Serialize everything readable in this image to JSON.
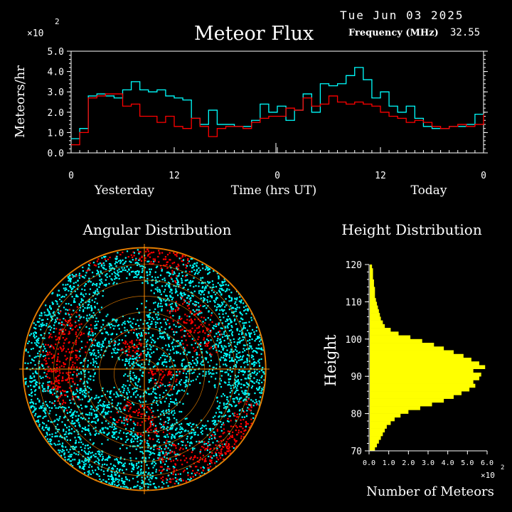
{
  "header": {
    "date": "Tue Jun 03 2025",
    "title": "Meteor Flux",
    "frequency_label": "Frequency (MHz)",
    "frequency_value": "32.55",
    "y_multiplier_base": "×10",
    "y_multiplier_exp": "2"
  },
  "colors": {
    "today": "#00ffff",
    "yesterday": "#ff0000",
    "histogram": "#ffff00",
    "axes": "#ffffff",
    "grid": "#ff8c00"
  },
  "chart_data": [
    {
      "type": "line",
      "title": "Meteor Flux",
      "ylabel": "Meteors/hr",
      "xlabel": "Time (hrs UT)",
      "day_labels": [
        "Yesterday",
        "Today"
      ],
      "y_scale_note": "×10^2",
      "ylim": [
        0.0,
        5.0
      ],
      "yticks": [
        "0.0",
        "1.0",
        "2.0",
        "3.0",
        "4.0",
        "5.0"
      ],
      "xlim": [
        0,
        48
      ],
      "xticks": [
        {
          "x": 0,
          "label": "0"
        },
        {
          "x": 12,
          "label": "12"
        },
        {
          "x": 24,
          "label": "0"
        },
        {
          "x": 36,
          "label": "12"
        },
        {
          "x": 48,
          "label": "0"
        }
      ],
      "step": "post",
      "series": [
        {
          "color": "cyan",
          "x": [
            0,
            1,
            2,
            3,
            4,
            5,
            6,
            7,
            8,
            9,
            10,
            11,
            12,
            13,
            14,
            15,
            16,
            17,
            18,
            19,
            20,
            21,
            22,
            23,
            24,
            25,
            26,
            27,
            28,
            29,
            30,
            31,
            32,
            33,
            34,
            35,
            36,
            37,
            38,
            39,
            40,
            41,
            42,
            43,
            44,
            45,
            46,
            47,
            48
          ],
          "y": [
            0.7,
            1.2,
            2.8,
            2.9,
            2.8,
            2.7,
            3.1,
            3.5,
            3.1,
            3.0,
            3.1,
            2.8,
            2.7,
            2.6,
            1.7,
            1.4,
            2.1,
            1.4,
            1.4,
            1.3,
            1.3,
            1.6,
            2.4,
            2.0,
            2.3,
            1.6,
            2.1,
            2.9,
            2.0,
            3.4,
            3.3,
            3.4,
            3.8,
            4.2,
            3.6,
            2.7,
            3.0,
            2.3,
            2.0,
            2.3,
            1.7,
            1.3,
            1.2,
            1.2,
            1.3,
            1.3,
            1.4,
            1.9,
            1.9
          ]
        },
        {
          "color": "red",
          "x": [
            0,
            1,
            2,
            3,
            4,
            5,
            6,
            7,
            8,
            9,
            10,
            11,
            12,
            13,
            14,
            15,
            16,
            17,
            18,
            19,
            20,
            21,
            22,
            23,
            24,
            25,
            26,
            27,
            28,
            29,
            30,
            31,
            32,
            33,
            34,
            35,
            36,
            37,
            38,
            39,
            40,
            41,
            42,
            43,
            44,
            45,
            46,
            47,
            48
          ],
          "y": [
            0.4,
            1.0,
            2.7,
            2.8,
            2.9,
            2.9,
            2.3,
            2.4,
            1.8,
            1.8,
            1.5,
            1.8,
            1.3,
            1.2,
            1.7,
            1.3,
            0.8,
            1.2,
            1.3,
            1.3,
            1.2,
            1.5,
            1.7,
            1.8,
            1.8,
            2.2,
            2.1,
            2.7,
            2.3,
            2.4,
            2.8,
            2.5,
            2.4,
            2.5,
            2.4,
            2.3,
            2.0,
            1.8,
            1.7,
            1.5,
            1.6,
            1.5,
            1.3,
            1.2,
            1.3,
            1.4,
            1.3,
            1.4,
            1.9
          ]
        }
      ]
    },
    {
      "type": "scatter",
      "title": "Angular Distribution",
      "subtype": "polar sky map",
      "rings": 8,
      "points_colors": [
        "cyan",
        "red",
        "black"
      ]
    },
    {
      "type": "bar",
      "orientation": "horizontal",
      "title": "Height Distribution",
      "ylabel": "Height",
      "xlabel": "Number of Meteors",
      "x_scale_note": "×10^2",
      "ylim": [
        70,
        120
      ],
      "yticks": [
        "70",
        "80",
        "90",
        "100",
        "110",
        "120"
      ],
      "xlim": [
        0.0,
        6.0
      ],
      "xticks": [
        "0.0",
        "1.0",
        "2.0",
        "3.0",
        "4.0",
        "5.0",
        "6.0"
      ],
      "heights": [
        70,
        71,
        72,
        73,
        74,
        75,
        76,
        77,
        78,
        79,
        80,
        81,
        82,
        83,
        84,
        85,
        86,
        87,
        88,
        89,
        90,
        91,
        92,
        93,
        94,
        95,
        96,
        97,
        98,
        99,
        100,
        101,
        102,
        103,
        104,
        105,
        106,
        107,
        108,
        109,
        110,
        111,
        112,
        113,
        114,
        115,
        116,
        117,
        118,
        119
      ],
      "values": [
        0.3,
        0.4,
        0.5,
        0.6,
        0.7,
        0.8,
        0.9,
        1.1,
        1.3,
        1.6,
        2.0,
        2.6,
        3.2,
        3.8,
        4.3,
        4.7,
        5.1,
        5.4,
        5.3,
        5.6,
        5.7,
        5.3,
        5.9,
        5.6,
        5.2,
        4.8,
        4.3,
        3.8,
        3.3,
        2.7,
        2.1,
        1.5,
        1.1,
        0.8,
        0.7,
        0.6,
        0.55,
        0.5,
        0.45,
        0.4,
        0.35,
        0.3,
        0.3,
        0.3,
        0.25,
        0.25,
        0.2,
        0.2,
        0.2,
        0.15
      ]
    }
  ]
}
